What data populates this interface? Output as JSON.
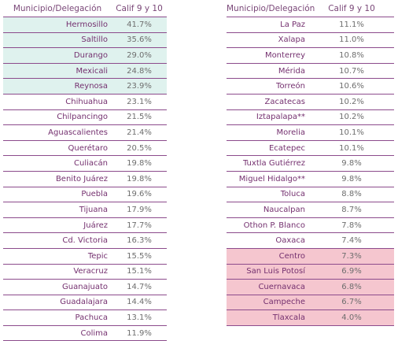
{
  "left": {
    "header": {
      "col1": "Municipio/Delegación",
      "col2": "Calif 9 y 10"
    },
    "rows": [
      {
        "city": "Hermosillo",
        "value": "41.7%",
        "highlight": "green"
      },
      {
        "city": "Saltillo",
        "value": "35.6%",
        "highlight": "green"
      },
      {
        "city": "Durango",
        "value": "29.0%",
        "highlight": "green"
      },
      {
        "city": "Mexicali",
        "value": "24.8%",
        "highlight": "green"
      },
      {
        "city": "Reynosa",
        "value": "23.9%",
        "highlight": "green"
      },
      {
        "city": "Chihuahua",
        "value": "23.1%",
        "highlight": ""
      },
      {
        "city": "Chilpancingo",
        "value": "21.5%",
        "highlight": ""
      },
      {
        "city": "Aguascalientes",
        "value": "21.4%",
        "highlight": ""
      },
      {
        "city": "Querétaro",
        "value": "20.5%",
        "highlight": ""
      },
      {
        "city": "Culiacán",
        "value": "19.8%",
        "highlight": ""
      },
      {
        "city": "Benito Juárez",
        "value": "19.8%",
        "highlight": ""
      },
      {
        "city": "Puebla",
        "value": "19.6%",
        "highlight": ""
      },
      {
        "city": "Tijuana",
        "value": "17.9%",
        "highlight": ""
      },
      {
        "city": "Juárez",
        "value": "17.7%",
        "highlight": ""
      },
      {
        "city": "Cd. Victoria",
        "value": "16.3%",
        "highlight": ""
      },
      {
        "city": "Tepic",
        "value": "15.5%",
        "highlight": ""
      },
      {
        "city": "Veracruz",
        "value": "15.1%",
        "highlight": ""
      },
      {
        "city": "Guanajuato",
        "value": "14.7%",
        "highlight": ""
      },
      {
        "city": "Guadalajara",
        "value": "14.4%",
        "highlight": ""
      },
      {
        "city": "Pachuca",
        "value": "13.1%",
        "highlight": ""
      },
      {
        "city": "Colima",
        "value": "11.9%",
        "highlight": ""
      }
    ]
  },
  "right": {
    "header": {
      "col1": "Municipio/Delegación",
      "col2": "Calif 9 y 10"
    },
    "rows": [
      {
        "city": "La Paz",
        "value": "11.1%",
        "highlight": ""
      },
      {
        "city": "Xalapa",
        "value": "11.0%",
        "highlight": ""
      },
      {
        "city": "Monterrey",
        "value": "10.8%",
        "highlight": ""
      },
      {
        "city": "Mérida",
        "value": "10.7%",
        "highlight": ""
      },
      {
        "city": "Torreón",
        "value": "10.6%",
        "highlight": ""
      },
      {
        "city": "Zacatecas",
        "value": "10.2%",
        "highlight": ""
      },
      {
        "city": "Iztapalapa**",
        "value": "10.2%",
        "highlight": ""
      },
      {
        "city": "Morelia",
        "value": "10.1%",
        "highlight": ""
      },
      {
        "city": "Ecatepec",
        "value": "10.1%",
        "highlight": ""
      },
      {
        "city": "Tuxtla Gutiérrez",
        "value": "9.8%",
        "highlight": ""
      },
      {
        "city": "Miguel Hidalgo**",
        "value": "9.8%",
        "highlight": ""
      },
      {
        "city": "Toluca",
        "value": "8.8%",
        "highlight": ""
      },
      {
        "city": "Naucalpan",
        "value": "8.7%",
        "highlight": ""
      },
      {
        "city": "Othon P. Blanco",
        "value": "7.8%",
        "highlight": ""
      },
      {
        "city": "Oaxaca",
        "value": "7.4%",
        "highlight": ""
      },
      {
        "city": "Centro",
        "value": "7.3%",
        "highlight": "pink"
      },
      {
        "city": "San Luis Potosí",
        "value": "6.9%",
        "highlight": "pink"
      },
      {
        "city": "Cuernavaca",
        "value": "6.8%",
        "highlight": "pink"
      },
      {
        "city": "Campeche",
        "value": "6.7%",
        "highlight": "pink"
      },
      {
        "city": "Tlaxcala",
        "value": "4.0%",
        "highlight": "pink"
      }
    ]
  }
}
